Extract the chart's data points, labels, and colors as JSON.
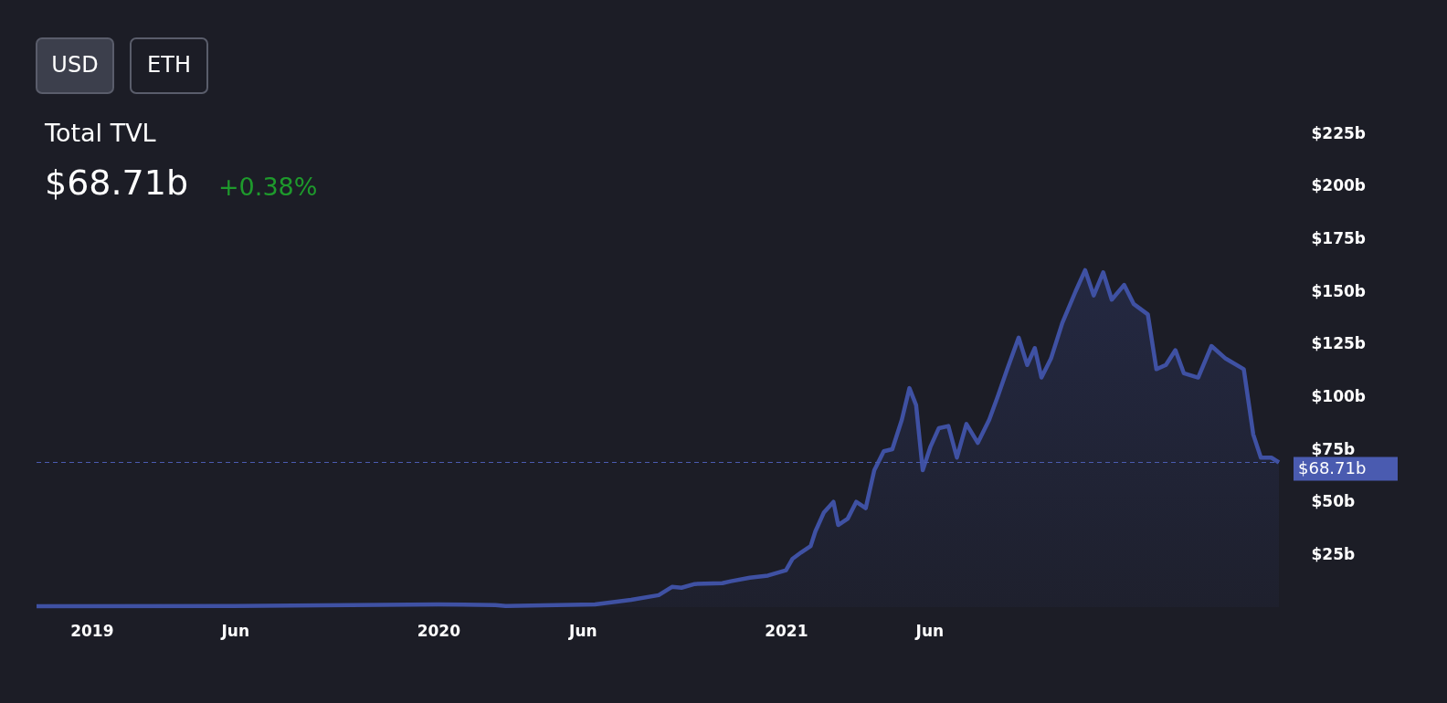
{
  "chart_data": {
    "type": "area",
    "title": "Total TVL",
    "subtitle": "$68.71b",
    "annotations": [
      "USD",
      "ETH",
      "+0.38%"
    ],
    "x": [
      "2018-11-04",
      "2019-06-01",
      "2020-01-01",
      "2020-03-01",
      "2020-03-12",
      "2020-06-14",
      "2020-07-22",
      "2020-08-20",
      "2020-09-03",
      "2020-09-13",
      "2020-09-27",
      "2020-10-26",
      "2020-11-04",
      "2020-11-24",
      "2020-12-13",
      "2021-01-01",
      "2021-01-08",
      "2021-01-17",
      "2021-01-27",
      "2021-02-01",
      "2021-02-10",
      "2021-02-20",
      "2021-02-25",
      "2021-03-07",
      "2021-03-16",
      "2021-03-26",
      "2021-04-04",
      "2021-04-14",
      "2021-04-23",
      "2021-05-03",
      "2021-05-11",
      "2021-05-18",
      "2021-05-25",
      "2021-06-02",
      "2021-06-11",
      "2021-06-21",
      "2021-06-30",
      "2021-07-10",
      "2021-07-22",
      "2021-08-03",
      "2021-08-12",
      "2021-08-22",
      "2021-09-03",
      "2021-09-12",
      "2021-09-20",
      "2021-09-27",
      "2021-10-07",
      "2021-10-19",
      "2021-11-02",
      "2021-11-12",
      "2021-11-21",
      "2021-12-01",
      "2021-12-10",
      "2021-12-23",
      "2022-01-02",
      "2022-01-17",
      "2022-01-26",
      "2022-02-05",
      "2022-02-15",
      "2022-02-24",
      "2022-03-11",
      "2022-03-25",
      "2022-04-09",
      "2022-04-28",
      "2022-05-08",
      "2022-05-16",
      "2022-05-27",
      "2022-06-04"
    ],
    "series": [
      {
        "color": "#3f51a3",
        "values": [
          0.4,
          0.5,
          1.3,
          1.0,
          0.5,
          1.3,
          3.5,
          5.7,
          9.6,
          9.2,
          11,
          11.4,
          12.3,
          14,
          15,
          17.5,
          23,
          26,
          29,
          36,
          45,
          50,
          39,
          42,
          50,
          47,
          65,
          74,
          75,
          89,
          104,
          96,
          65,
          76,
          85,
          86,
          71,
          87,
          78,
          89,
          100,
          113,
          128,
          115,
          123,
          109,
          118,
          135,
          150,
          160,
          148,
          159,
          146,
          153,
          144,
          139,
          113,
          115,
          122,
          111,
          109,
          124,
          118,
          113,
          82,
          71,
          71,
          68.71
        ]
      }
    ],
    "xlim": [
      "2018-11-04",
      "2022-06-04"
    ],
    "xticks": [
      {
        "value": "2019-01-01",
        "label": "2019"
      },
      {
        "value": "2019-06-01",
        "label": "Jun"
      },
      {
        "value": "2020-01-01",
        "label": "2020"
      },
      {
        "value": "2020-06-01",
        "label": "Jun"
      },
      {
        "value": "2021-01-01",
        "label": "2021"
      },
      {
        "value": "2021-06-01",
        "label": "Jun"
      }
    ],
    "ylim": [
      0,
      225
    ],
    "yticks": [
      {
        "value": 25,
        "label": "$25b"
      },
      {
        "value": 50,
        "label": "$50b"
      },
      {
        "value": 75,
        "label": "$75b"
      },
      {
        "value": 100,
        "label": "$100b"
      },
      {
        "value": 125,
        "label": "$125b"
      },
      {
        "value": 150,
        "label": "$150b"
      },
      {
        "value": 175,
        "label": "$175b"
      },
      {
        "value": 200,
        "label": "$200b"
      },
      {
        "value": 225,
        "label": "$225b"
      }
    ],
    "ref_lines": [
      {
        "axis": "y",
        "value": 68.71,
        "label": "$68.71b",
        "color": "#4a5bb0",
        "line_style": "dashed"
      }
    ],
    "grid": false
  }
}
